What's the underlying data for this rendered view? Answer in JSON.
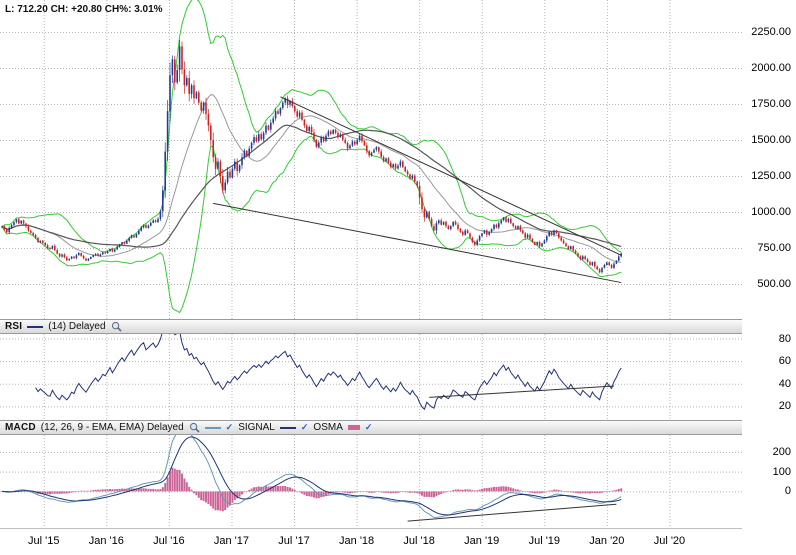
{
  "quote": {
    "text": "L: 712.20 CH: +20.80 CH%: 3.01%"
  },
  "rsi": {
    "title": "RSI",
    "subtitle": "(14) Delayed"
  },
  "macd": {
    "title": "MACD",
    "subtitle": "(12, 26, 9 - EMA, EMA) Delayed",
    "signal_label": "SIGNAL",
    "osma_label": "OSMA"
  },
  "colors": {
    "up": "#1f3d99",
    "down": "#cc2222",
    "bollinger": "#33cc33",
    "sma_fast": "#999999",
    "sma_slow": "#555555",
    "rsi_line": "#223377",
    "macd_line": "#6699bb",
    "signal_line": "#1f3377",
    "osma_bar": "#cc6699",
    "trendline": "#333333",
    "grid": "#b5b5b5"
  },
  "chart_data": {
    "type": "candlestick",
    "frequency": "weekly",
    "range_start": "Mar 2015",
    "range_end": "Feb 2020",
    "last": 712.2,
    "change": 20.8,
    "change_pct": 3.01,
    "price_ticks": [
      "2250.00",
      "2000.00",
      "1750.00",
      "1500.00",
      "1250.00",
      "1000.00",
      "750.00",
      "500.00"
    ],
    "rsi_ticks": [
      "80",
      "60",
      "40",
      "20"
    ],
    "macd_ticks": [
      "200",
      "100",
      "0"
    ],
    "x_labels": [
      "Jul '15",
      "Jan '16",
      "Jul '16",
      "Jan '17",
      "Jul '17",
      "Jan '18",
      "Jul '18",
      "Jan '19",
      "Jul '19",
      "Jan '20",
      "Jul '20"
    ],
    "ylim": [
      257,
      2472
    ],
    "rsi_ylim": [
      8,
      84
    ],
    "macd_ylim": [
      -185,
      285
    ],
    "indicators": {
      "bollinger_period": 20,
      "bollinger_stddev": 2,
      "sma_periods": [
        20,
        50
      ],
      "rsi_period": 14,
      "macd": [
        12,
        26,
        9
      ]
    },
    "trendlines": {
      "price": [
        [
          116,
          1800,
          258,
          700
        ],
        [
          88,
          1060,
          258,
          510
        ]
      ],
      "rsi": [
        [
          178,
          28,
          255,
          38
        ]
      ],
      "macd": [
        [
          169,
          -150,
          256,
          -65
        ]
      ]
    },
    "closes": [
      900,
      880,
      860,
      890,
      910,
      930,
      950,
      920,
      940,
      920,
      900,
      870,
      855,
      840,
      820,
      790,
      800,
      785,
      770,
      750,
      745,
      765,
      735,
      710,
      690,
      705,
      685,
      665,
      675,
      690,
      680,
      700,
      715,
      695,
      678,
      662,
      675,
      688,
      700,
      710,
      695,
      705,
      720,
      714,
      728,
      744,
      726,
      740,
      758,
      775,
      790,
      780,
      800,
      820,
      838,
      824,
      846,
      870,
      894,
      910,
      890,
      905,
      925,
      942,
      930,
      952,
      1005,
      1150,
      1420,
      1700,
      1950,
      2060,
      1900,
      1985,
      2150,
      1990,
      1880,
      1930,
      1820,
      1880,
      1790,
      1830,
      1760,
      1705,
      1760,
      1680,
      1600,
      1500,
      1380,
      1300,
      1350,
      1250,
      1150,
      1205,
      1280,
      1240,
      1300,
      1350,
      1285,
      1325,
      1380,
      1425,
      1390,
      1440,
      1480,
      1520,
      1492,
      1540,
      1505,
      1550,
      1600,
      1572,
      1620,
      1650,
      1700,
      1682,
      1722,
      1760,
      1790,
      1745,
      1772,
      1735,
      1700,
      1662,
      1690,
      1640,
      1600,
      1562,
      1590,
      1552,
      1500,
      1452,
      1482,
      1520,
      1492,
      1530,
      1560,
      1542,
      1570,
      1550,
      1522,
      1540,
      1502,
      1480,
      1442,
      1462,
      1490,
      1470,
      1500,
      1530,
      1492,
      1462,
      1422,
      1392,
      1412,
      1432,
      1450,
      1420,
      1382,
      1352,
      1372,
      1342,
      1312,
      1332,
      1302,
      1322,
      1350,
      1312,
      1282,
      1262,
      1232,
      1252,
      1212,
      1182,
      1100,
      1020,
      962,
      1002,
      952,
      902,
      872,
      922,
      942,
      912,
      932,
      902,
      882,
      902,
      932,
      912,
      882,
      862,
      842,
      872,
      852,
      822,
      792,
      772,
      802,
      832,
      852,
      872,
      842,
      862,
      882,
      912,
      892,
      922,
      942,
      962,
      932,
      952,
      922,
      902,
      882,
      902,
      872,
      852,
      822,
      842,
      812,
      792,
      772,
      792,
      762,
      782,
      802,
      832,
      862,
      842,
      872,
      852,
      822,
      802,
      782,
      762,
      742,
      762,
      732,
      712,
      692,
      672,
      692,
      672,
      652,
      632,
      652,
      622,
      602,
      582,
      612,
      632,
      650,
      632,
      612,
      642,
      662,
      691.4,
      712.2
    ]
  }
}
